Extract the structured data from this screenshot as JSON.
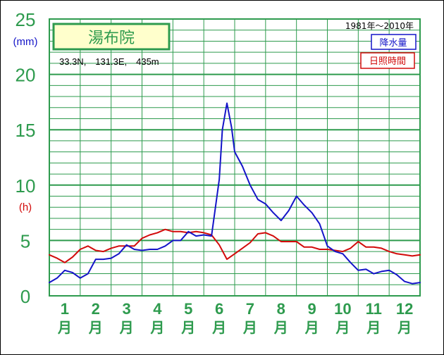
{
  "chart_data": {
    "type": "line",
    "title": "湯布院",
    "location": "33.3N,　131.3E,　435m",
    "period": "1981年〜2010年",
    "ylabel_units": [
      "(mm)",
      "(h)"
    ],
    "categories": [
      "1",
      "2",
      "3",
      "4",
      "5",
      "6",
      "7",
      "8",
      "9",
      "10",
      "11",
      "12"
    ],
    "month_suffix": "月",
    "y_ticks": [
      "0",
      "5",
      "10",
      "15",
      "20",
      "25"
    ],
    "ylim": [
      0,
      25
    ],
    "x_range": [
      0.5,
      12.5
    ],
    "grid": true,
    "legend_placement": "top-right",
    "series": [
      {
        "name": "降水量",
        "color": "#1414c8",
        "x": [
          0.5,
          0.75,
          1.0,
          1.25,
          1.5,
          1.75,
          2.0,
          2.25,
          2.5,
          2.75,
          3.0,
          3.25,
          3.5,
          3.75,
          4.0,
          4.25,
          4.5,
          4.75,
          5.0,
          5.25,
          5.5,
          5.75,
          6.0,
          6.1,
          6.25,
          6.4,
          6.5,
          6.75,
          7.0,
          7.25,
          7.5,
          7.75,
          8.0,
          8.25,
          8.5,
          8.75,
          9.0,
          9.25,
          9.5,
          9.75,
          10.0,
          10.25,
          10.5,
          10.75,
          11.0,
          11.25,
          11.5,
          11.75,
          12.0,
          12.25,
          12.5
        ],
        "values": [
          1.2,
          1.6,
          2.3,
          2.1,
          1.6,
          2.0,
          3.3,
          3.3,
          3.4,
          3.8,
          4.6,
          4.2,
          4.1,
          4.2,
          4.2,
          4.5,
          5.0,
          5.0,
          5.8,
          5.4,
          5.5,
          5.4,
          10.5,
          15.0,
          17.4,
          15.2,
          13.0,
          11.7,
          10.0,
          8.7,
          8.3,
          7.5,
          6.8,
          7.7,
          9.0,
          8.2,
          7.5,
          6.5,
          4.5,
          4.0,
          3.8,
          3.0,
          2.3,
          2.4,
          2.0,
          2.2,
          2.3,
          1.9,
          1.3,
          1.1,
          1.2
        ]
      },
      {
        "name": "日照時間",
        "color": "#d20a0a",
        "x": [
          0.5,
          0.75,
          1.0,
          1.25,
          1.5,
          1.75,
          2.0,
          2.25,
          2.5,
          2.75,
          3.0,
          3.25,
          3.5,
          3.75,
          4.0,
          4.25,
          4.5,
          4.75,
          5.0,
          5.25,
          5.5,
          5.75,
          6.0,
          6.25,
          6.5,
          6.75,
          7.0,
          7.25,
          7.5,
          7.75,
          8.0,
          8.25,
          8.5,
          8.75,
          9.0,
          9.25,
          9.5,
          9.75,
          10.0,
          10.25,
          10.5,
          10.75,
          11.0,
          11.25,
          11.5,
          11.75,
          12.0,
          12.25,
          12.5
        ],
        "values": [
          3.7,
          3.4,
          3.0,
          3.5,
          4.2,
          4.5,
          4.1,
          4.0,
          4.3,
          4.5,
          4.5,
          4.5,
          5.2,
          5.5,
          5.7,
          6.0,
          5.8,
          5.8,
          5.7,
          5.8,
          5.7,
          5.5,
          4.6,
          3.3,
          3.8,
          4.3,
          4.8,
          5.6,
          5.7,
          5.4,
          4.9,
          4.9,
          4.9,
          4.4,
          4.4,
          4.2,
          4.2,
          4.1,
          4.0,
          4.3,
          4.9,
          4.4,
          4.4,
          4.3,
          4.0,
          3.8,
          3.7,
          3.6,
          3.7
        ]
      }
    ]
  }
}
